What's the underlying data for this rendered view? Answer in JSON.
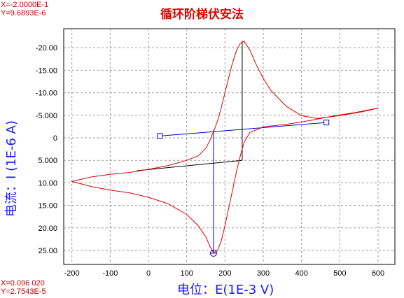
{
  "window": {
    "title": "循环阶梯伏安法",
    "cursor_top": {
      "x": "X=-2.0000E-1",
      "y": "Y=9.6893E-6"
    },
    "cursor_bottom": {
      "x": "X=0.096 020",
      "y": "Y=2.7543E-5"
    }
  },
  "chart_data": {
    "type": "line",
    "title": "循环阶梯伏安法",
    "xlabel": "电位：E(1E-3 V)",
    "ylabel": "电流：I (1E-6 A)",
    "xlim": [
      -250,
      620
    ],
    "ylim": [
      28,
      -23
    ],
    "y_inverted": true,
    "grid": true,
    "x_ticks": [
      "-200",
      "-100",
      "0",
      "100",
      "200",
      "300",
      "400",
      "500",
      "600"
    ],
    "y_ticks": [
      "-20.00",
      "-15.00",
      "-10.00",
      "-5.000",
      "0",
      "5.000",
      "10.00",
      "15.00",
      "20.00",
      "25.00"
    ],
    "colors": {
      "voltammogram": "#e00000",
      "baseline": "#0000cc",
      "drop_line": "#000000"
    },
    "series": [
      {
        "values": [
          [
            600,
            -6.6
          ],
          [
            560,
            -5.8
          ],
          [
            520,
            -5.2
          ],
          [
            480,
            -4.7
          ],
          [
            440,
            -4.3
          ],
          [
            400,
            -4.9
          ],
          [
            360,
            -7.0
          ],
          [
            320,
            -10.5
          ],
          [
            300,
            -13.2
          ],
          [
            280,
            -16.5
          ],
          [
            265,
            -19.5
          ],
          [
            250,
            -21.4
          ],
          [
            240,
            -21.0
          ],
          [
            230,
            -19.3
          ],
          [
            220,
            -16.8
          ],
          [
            210,
            -13.5
          ],
          [
            200,
            -10.0
          ],
          [
            190,
            -6.6
          ],
          [
            180,
            -3.6
          ],
          [
            170,
            -1.4
          ],
          [
            160,
            0.7
          ],
          [
            150,
            2.3
          ],
          [
            130,
            4.0
          ],
          [
            100,
            5.0
          ],
          [
            50,
            6.2
          ],
          [
            0,
            7.0
          ],
          [
            -50,
            7.7
          ],
          [
            -100,
            8.1
          ],
          [
            -150,
            8.7
          ],
          [
            -200,
            9.69
          ],
          [
            -150,
            10.8
          ],
          [
            -100,
            11.6
          ],
          [
            -50,
            12.2
          ],
          [
            0,
            13.2
          ],
          [
            50,
            14.6
          ],
          [
            100,
            17.0
          ],
          [
            130,
            19.5
          ],
          [
            150,
            22.0
          ],
          [
            160,
            24.0
          ],
          [
            170,
            25.5
          ],
          [
            180,
            25.1
          ],
          [
            190,
            23.0
          ],
          [
            200,
            19.5
          ],
          [
            210,
            15.5
          ],
          [
            220,
            11.5
          ],
          [
            230,
            7.5
          ],
          [
            240,
            4.0
          ],
          [
            250,
            1.0
          ],
          [
            265,
            -1.2
          ],
          [
            300,
            -2.4
          ],
          [
            360,
            -3.0
          ],
          [
            420,
            -3.8
          ],
          [
            480,
            -4.8
          ],
          [
            540,
            -5.6
          ],
          [
            600,
            -6.6
          ]
        ]
      }
    ],
    "baselines": [
      {
        "from": [
          30,
          -0.4
        ],
        "to": [
          465,
          -3.4
        ]
      },
      {
        "from": [
          -30,
          7.3
        ],
        "to": [
          245,
          5.0
        ]
      }
    ],
    "drop_lines": [
      {
        "x": 170,
        "from": -1.7,
        "to": 25.6
      },
      {
        "x": 245,
        "from": 5.0,
        "to": -21.5
      }
    ],
    "markers": [
      {
        "shape": "square",
        "at": [
          30,
          -0.4
        ]
      },
      {
        "shape": "square",
        "at": [
          465,
          -3.4
        ]
      },
      {
        "shape": "circle",
        "at": [
          170,
          25.6
        ]
      }
    ]
  }
}
